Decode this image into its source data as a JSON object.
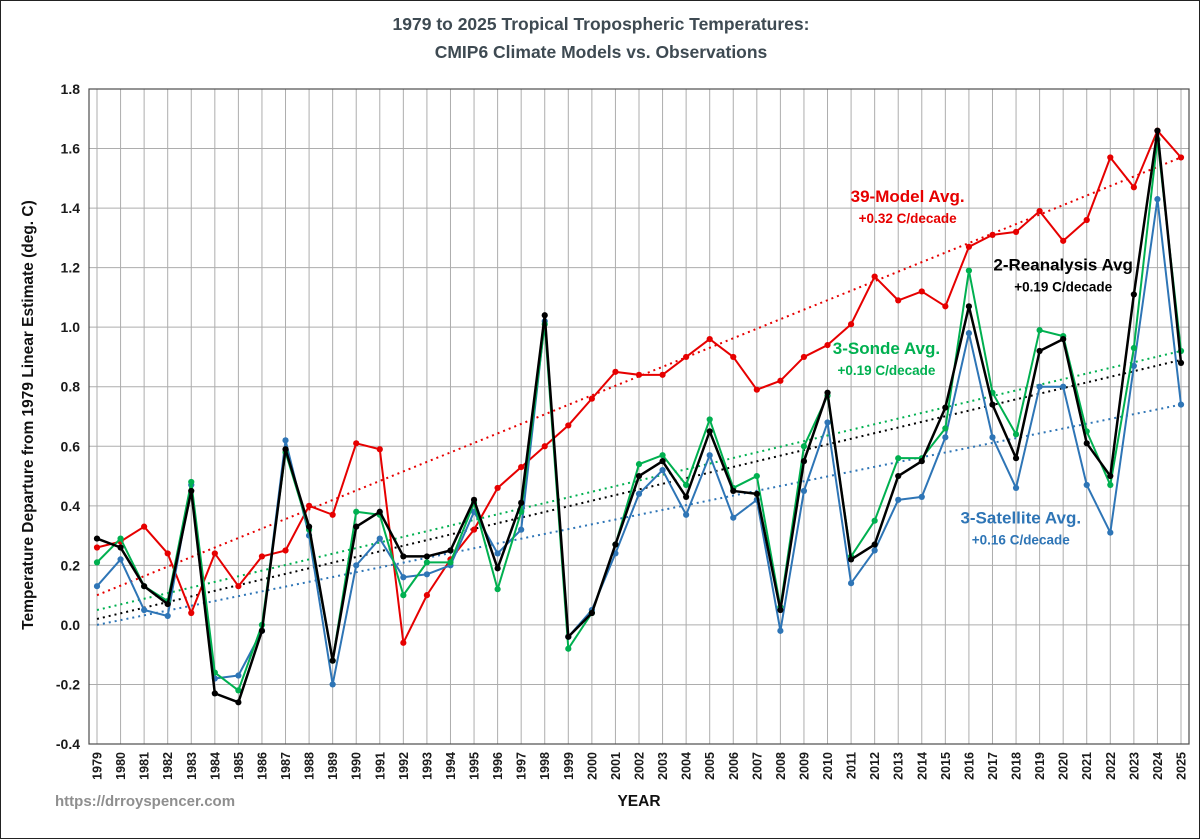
{
  "page": {
    "title_line1": "1979 to 2025 Tropical Tropospheric Temperatures:",
    "title_line2": "CMIP6 Climate Models vs. Observations",
    "footer_url": "https://drroyspencer.com"
  },
  "chart_data": {
    "type": "line",
    "title": "1979 to 2025 Tropical Tropospheric Temperatures: CMIP6 Climate Models vs. Observations",
    "xlabel": "YEAR",
    "ylabel": "Temperature Departure from 1979 Linear Estimate (deg. C)",
    "ylim": [
      -0.4,
      1.8
    ],
    "yticks": [
      1.8,
      1.6,
      1.4,
      1.2,
      1.0,
      0.8,
      0.6,
      0.4,
      0.2,
      0.0,
      -0.2,
      -0.4
    ],
    "grid": true,
    "legend_position": "inline-annotations",
    "years": [
      1979,
      1980,
      1981,
      1982,
      1983,
      1984,
      1985,
      1986,
      1987,
      1988,
      1989,
      1990,
      1991,
      1992,
      1993,
      1994,
      1995,
      1996,
      1997,
      1998,
      1999,
      2000,
      2001,
      2002,
      2003,
      2004,
      2005,
      2006,
      2007,
      2008,
      2009,
      2010,
      2011,
      2012,
      2013,
      2014,
      2015,
      2016,
      2017,
      2018,
      2019,
      2020,
      2021,
      2022,
      2023,
      2024,
      2025
    ],
    "series": [
      {
        "name": "39-Model Avg.",
        "color": "#e60000",
        "line_width": 2,
        "values": [
          0.26,
          0.28,
          0.33,
          0.24,
          0.04,
          0.24,
          0.13,
          0.23,
          0.25,
          0.4,
          0.37,
          0.61,
          0.59,
          -0.06,
          0.1,
          0.22,
          0.32,
          0.46,
          0.53,
          0.6,
          0.67,
          0.76,
          0.85,
          0.84,
          0.84,
          0.9,
          0.96,
          0.9,
          0.79,
          0.82,
          0.9,
          0.94,
          1.01,
          1.17,
          1.09,
          1.12,
          1.07,
          1.27,
          1.31,
          1.32,
          1.39,
          1.29,
          1.36,
          1.57,
          1.47,
          1.66,
          1.57
        ]
      },
      {
        "name": "3-Satellite Avg.",
        "color": "#2e75b6",
        "line_width": 2,
        "values": [
          0.13,
          0.22,
          0.05,
          0.03,
          0.47,
          -0.18,
          -0.17,
          -0.02,
          0.62,
          0.3,
          -0.2,
          0.2,
          0.29,
          0.16,
          0.17,
          0.2,
          0.38,
          0.24,
          0.32,
          1.02,
          -0.04,
          0.05,
          0.24,
          0.44,
          0.52,
          0.37,
          0.57,
          0.36,
          0.42,
          -0.02,
          0.45,
          0.68,
          0.14,
          0.25,
          0.42,
          0.43,
          0.63,
          0.98,
          0.63,
          0.46,
          0.8,
          0.8,
          0.47,
          0.31,
          0.87,
          1.43,
          0.74
        ]
      },
      {
        "name": "3-Sonde Avg.",
        "color": "#00b050",
        "line_width": 2,
        "values": [
          0.21,
          0.29,
          0.13,
          0.08,
          0.48,
          -0.16,
          -0.22,
          0.0,
          0.58,
          0.32,
          -0.12,
          0.38,
          0.37,
          0.1,
          0.21,
          0.21,
          0.41,
          0.12,
          0.38,
          1.01,
          -0.08,
          0.04,
          0.27,
          0.54,
          0.57,
          0.47,
          0.69,
          0.46,
          0.5,
          0.06,
          0.6,
          0.77,
          0.23,
          0.35,
          0.56,
          0.56,
          0.66,
          1.19,
          0.78,
          0.64,
          0.99,
          0.97,
          0.65,
          0.47,
          0.93,
          1.63,
          0.92
        ]
      },
      {
        "name": "2-Reanalysis Avg",
        "color": "#000000",
        "line_width": 2.5,
        "values": [
          0.29,
          0.26,
          0.13,
          0.07,
          0.45,
          -0.23,
          -0.26,
          -0.02,
          0.59,
          0.33,
          -0.12,
          0.33,
          0.38,
          0.23,
          0.23,
          0.25,
          0.42,
          0.19,
          0.41,
          1.04,
          -0.04,
          0.04,
          0.27,
          0.5,
          0.55,
          0.43,
          0.65,
          0.45,
          0.44,
          0.05,
          0.55,
          0.78,
          0.22,
          0.27,
          0.5,
          0.55,
          0.73,
          1.07,
          0.74,
          0.56,
          0.92,
          0.96,
          0.61,
          0.5,
          1.11,
          1.66,
          0.88
        ]
      }
    ],
    "trend_lines": [
      {
        "name": "39-Model Avg. trend",
        "color": "#e60000",
        "rate": "+0.32 C/decade",
        "start": 0.1,
        "end": 1.57
      },
      {
        "name": "3-Satellite Avg. trend",
        "color": "#2e75b6",
        "rate": "+0.16 C/decade",
        "start": 0.0,
        "end": 0.74
      },
      {
        "name": "3-Sonde Avg. trend",
        "color": "#00b050",
        "rate": "+0.19 C/decade",
        "start": 0.05,
        "end": 0.92
      },
      {
        "name": "2-Reanalysis Avg trend",
        "color": "#000000",
        "rate": "+0.19 C/decade",
        "start": 0.02,
        "end": 0.89
      }
    ],
    "annotations": [
      {
        "label": "39-Model Avg.",
        "sub": "+0.32 C/decade",
        "color": "#e60000",
        "year": 2013.4,
        "y": 1.42
      },
      {
        "label": "2-Reanalysis Avg",
        "sub": "+0.19 C/decade",
        "color": "#000000",
        "year": 2020.0,
        "y": 1.19
      },
      {
        "label": "3-Sonde Avg.",
        "sub": "+0.19 C/decade",
        "color": "#00b050",
        "year": 2012.5,
        "y": 0.91
      },
      {
        "label": "3-Satellite Avg.",
        "sub": "+0.16 C/decade",
        "color": "#2e75b6",
        "year": 2018.2,
        "y": 0.34
      }
    ]
  }
}
